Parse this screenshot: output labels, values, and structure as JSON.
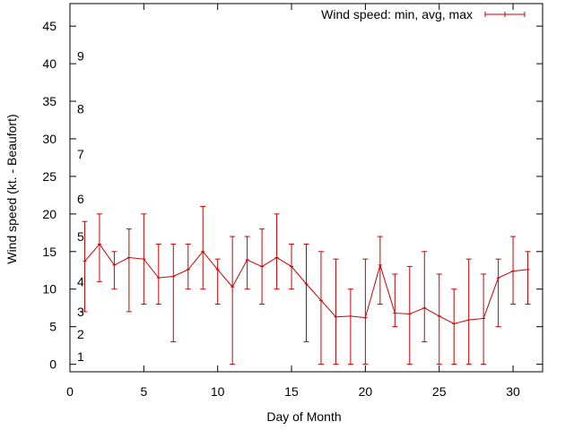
{
  "chart_data": {
    "type": "line",
    "title": "",
    "xlabel": "Day of Month",
    "ylabel": "Wind speed (kt. - Beaufort)",
    "xlim": [
      0,
      32
    ],
    "ylim": [
      -1,
      48
    ],
    "x_ticks": [
      0,
      5,
      10,
      15,
      20,
      25,
      30
    ],
    "y_ticks": [
      0,
      5,
      10,
      15,
      20,
      25,
      30,
      35,
      40,
      45
    ],
    "grid": false,
    "legend_position": "top-right",
    "beaufort_labels": [
      {
        "label": "1",
        "y": 1
      },
      {
        "label": "2",
        "y": 4
      },
      {
        "label": "3",
        "y": 7
      },
      {
        "label": "4",
        "y": 11
      },
      {
        "label": "5",
        "y": 17
      },
      {
        "label": "6",
        "y": 22
      },
      {
        "label": "7",
        "y": 28
      },
      {
        "label": "8",
        "y": 34
      },
      {
        "label": "9",
        "y": 41
      }
    ],
    "series": [
      {
        "name": "Wind speed: min, avg, max",
        "color": "#cc0000",
        "x": [
          1,
          2,
          3,
          4,
          5,
          6,
          7,
          8,
          9,
          10,
          11,
          12,
          13,
          14,
          15,
          16,
          17,
          18,
          19,
          20,
          21,
          22,
          23,
          24,
          25,
          26,
          27,
          28,
          29,
          30,
          31
        ],
        "avg": [
          13.7,
          16.0,
          13.2,
          14.2,
          14.0,
          11.5,
          11.7,
          12.6,
          15.0,
          12.6,
          10.3,
          13.9,
          13.0,
          14.2,
          13.0,
          10.7,
          8.5,
          6.3,
          6.4,
          6.2,
          13.2,
          6.8,
          6.7,
          7.5,
          6.4,
          5.4,
          5.9,
          6.1,
          11.5,
          12.4,
          12.6
        ],
        "min": [
          7,
          11,
          10,
          7,
          8,
          8,
          3,
          10,
          10,
          8,
          0,
          10,
          8,
          10,
          10,
          3,
          0,
          0,
          0,
          0,
          8,
          5,
          0,
          3,
          0,
          0,
          0,
          0,
          5,
          8,
          8
        ],
        "max": [
          19,
          20,
          15,
          18,
          20,
          16,
          16,
          16,
          21,
          14,
          17,
          17,
          18,
          20,
          16,
          16,
          15,
          14,
          10,
          14,
          17,
          12,
          13,
          15,
          12,
          10,
          14,
          12,
          14,
          17,
          15
        ]
      }
    ]
  }
}
